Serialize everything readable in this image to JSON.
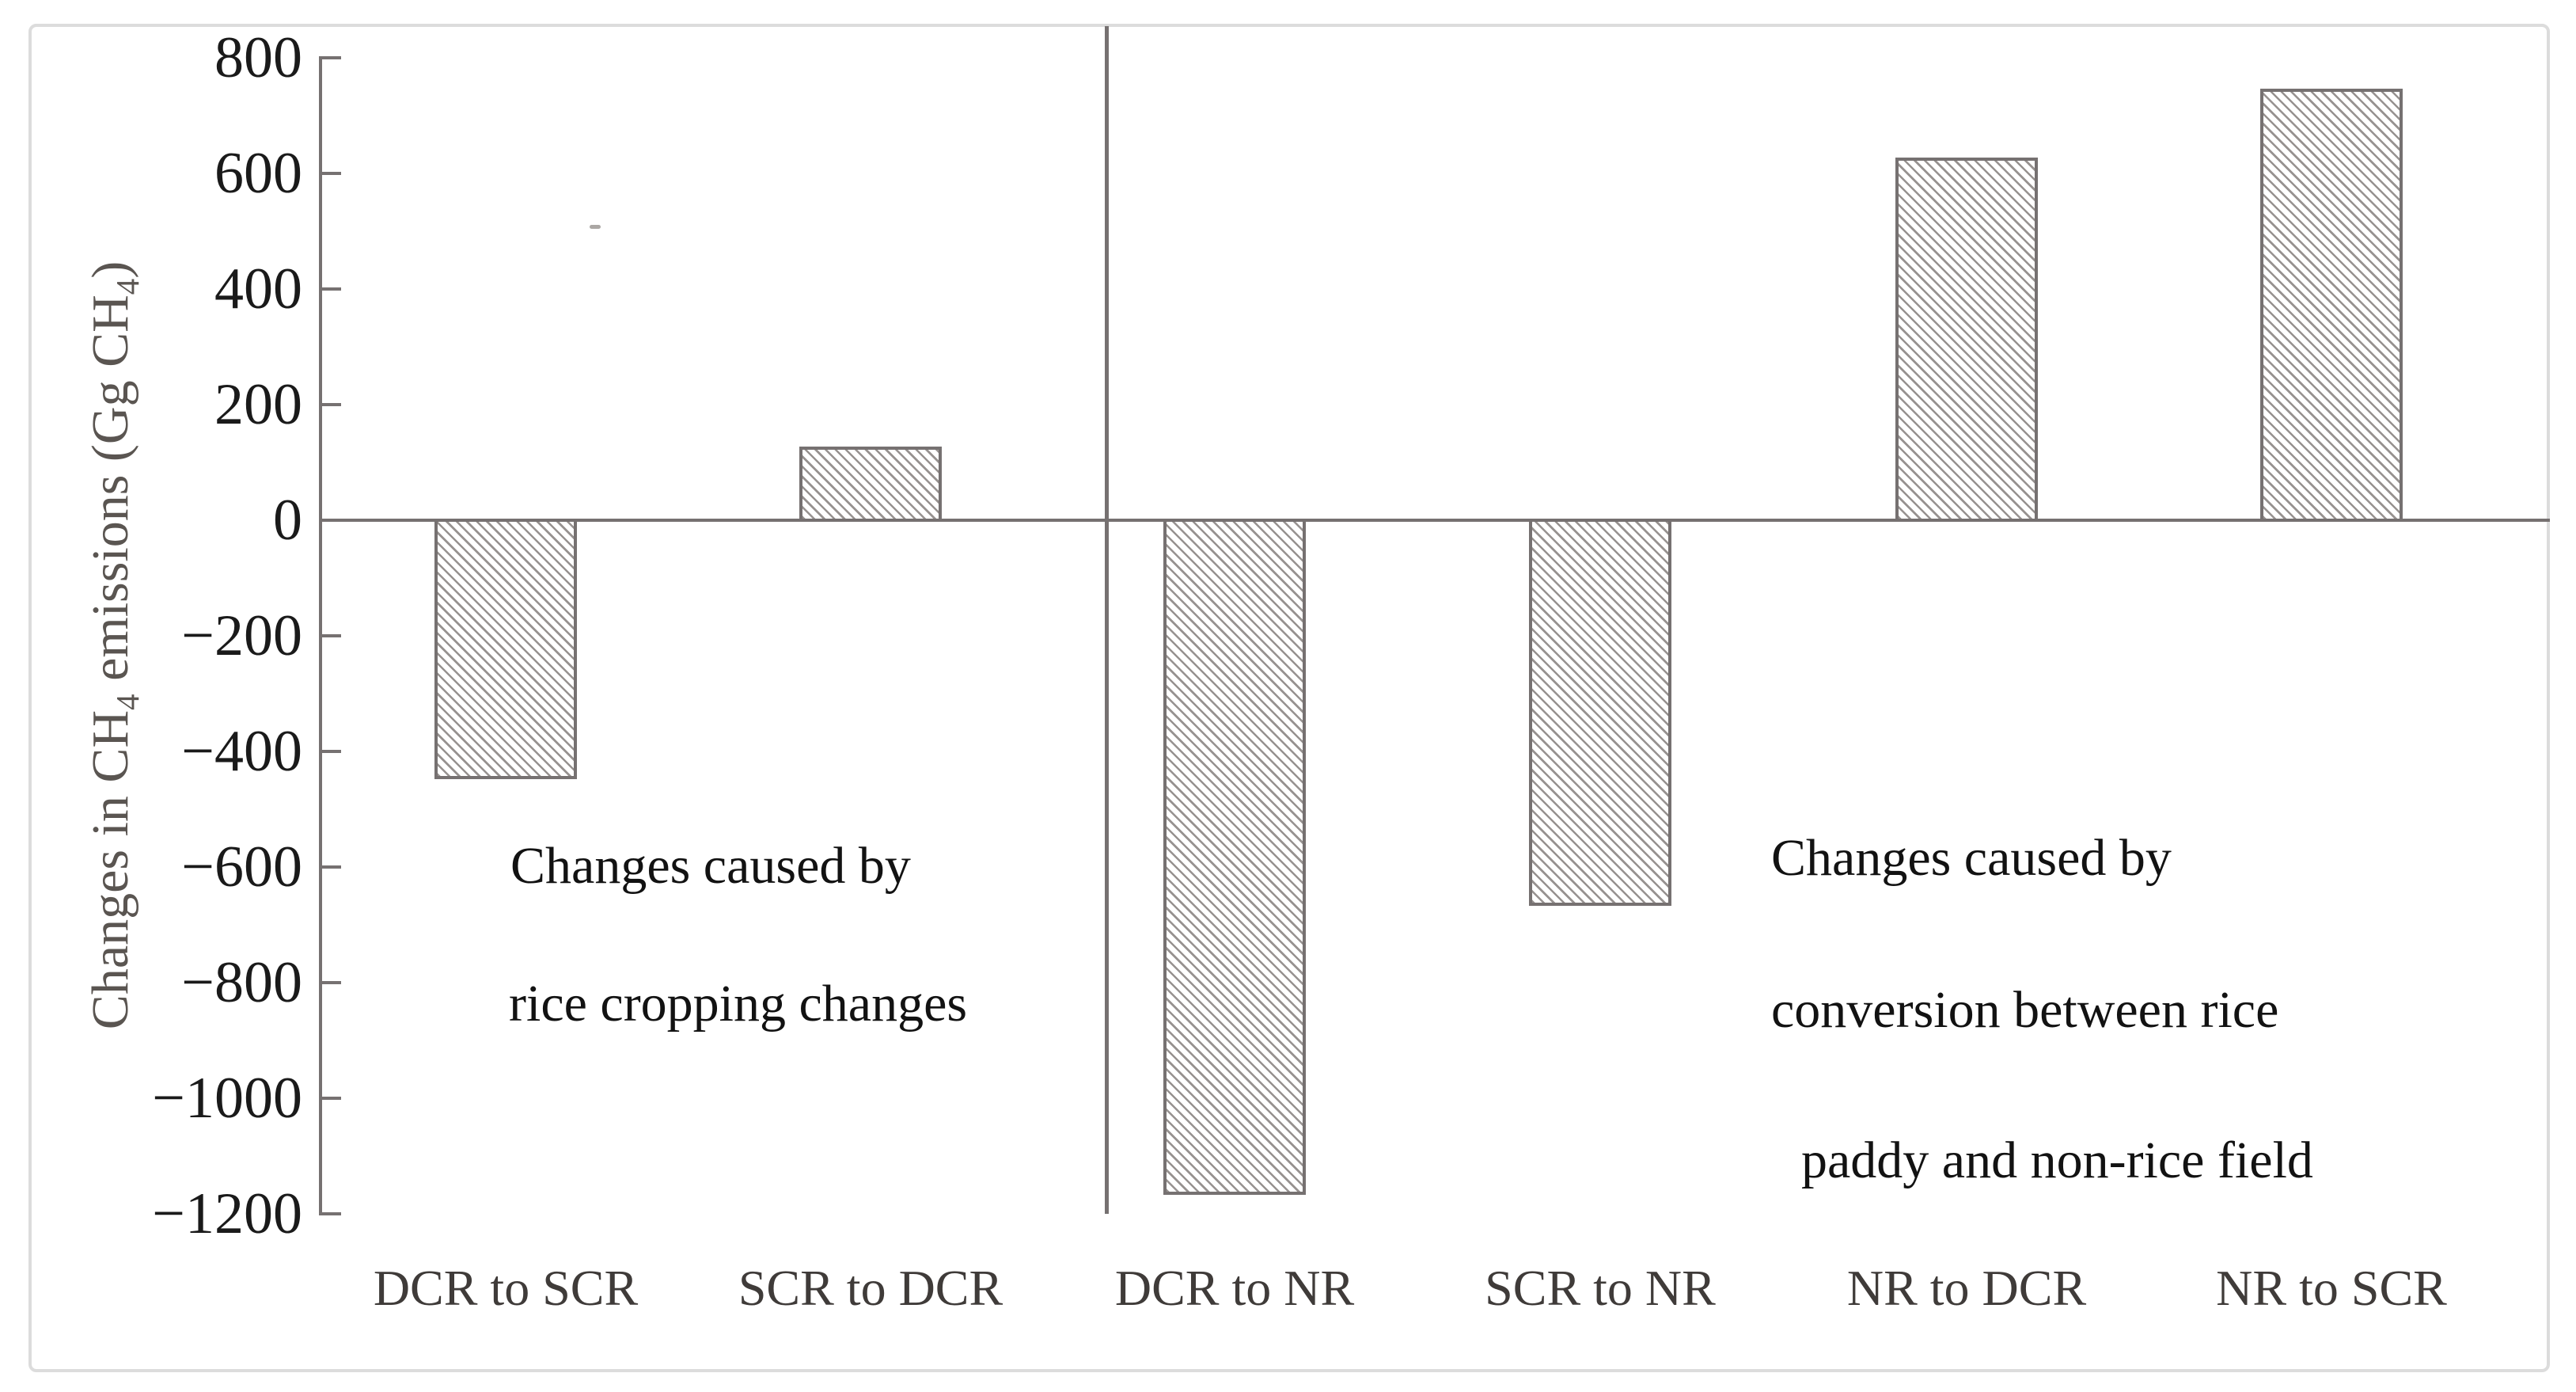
{
  "figure": {
    "background_color": "#ffffff",
    "frame_color": "#dcdcdc",
    "axis_color": "#767171",
    "bar_border_color": "#767171",
    "hatch_color": "#979290",
    "text_color": "#1a1a1a"
  },
  "axis": {
    "title_plain": "Changes in CH4 emissions (Gg CH4)",
    "title_parts": [
      {
        "text": "Changes in CH"
      },
      {
        "text": "4",
        "subscript": true
      },
      {
        "text": " emissions (Gg CH"
      },
      {
        "text": "4",
        "subscript": true
      },
      {
        "text": ")"
      }
    ],
    "ticks": [
      800,
      600,
      400,
      200,
      0,
      -200,
      -400,
      -600,
      -800,
      -1000,
      -1200
    ],
    "tick_labels": [
      "800",
      "600",
      "400",
      "200",
      "0",
      "−200",
      "−400",
      "−600",
      "−800",
      "−1000",
      "−1200"
    ]
  },
  "chart_data": {
    "type": "bar",
    "categories": [
      "DCR to SCR",
      "SCR to DCR",
      "DCR to NR",
      "SCR to NR",
      "NR to DCR",
      "NR to SCR"
    ],
    "values": [
      -450,
      130,
      -1170,
      -670,
      630,
      750
    ],
    "title": "",
    "xlabel": "",
    "ylabel": "Changes in CH4 emissions (Gg CH4)",
    "ylim": [
      -1200,
      800
    ],
    "ytick_step": 200,
    "grid": false,
    "legend": false,
    "bar_style": "white fill with gray diagonal hatch (\\ direction), gray border",
    "groups": [
      {
        "annotation_lines": [
          "Changes caused by",
          "rice cropping changes"
        ],
        "categories": [
          "DCR to SCR",
          "SCR to DCR"
        ]
      },
      {
        "annotation_lines": [
          "Changes caused by",
          "conversion between rice",
          "paddy and non-rice field"
        ],
        "categories": [
          "DCR to NR",
          "SCR to NR",
          "NR to DCR",
          "NR to SCR"
        ]
      }
    ]
  },
  "annotations": {
    "left": {
      "lines": [
        "Changes caused by",
        "rice cropping changes"
      ]
    },
    "right": {
      "lines": [
        "Changes caused by",
        "conversion between rice",
        "paddy and non-rice field"
      ]
    }
  }
}
